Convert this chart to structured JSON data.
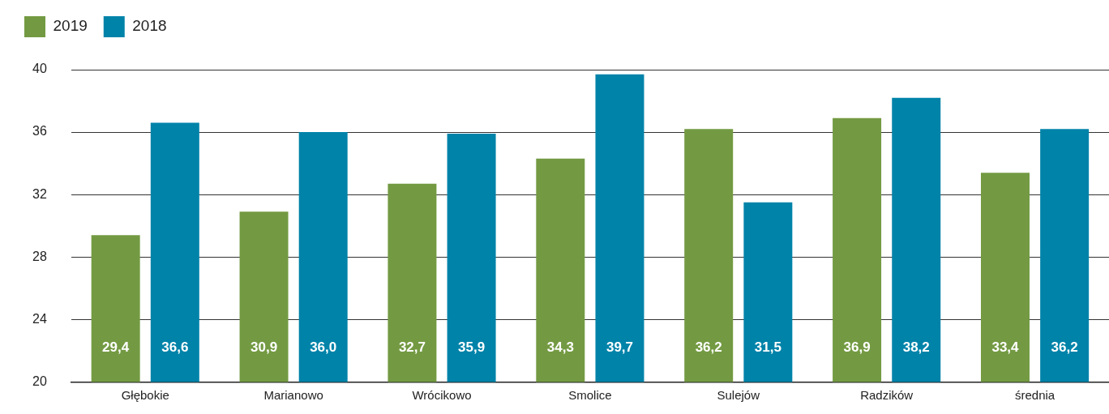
{
  "chart_data": {
    "type": "bar",
    "categories": [
      "Głębokie",
      "Marianowo",
      "Wrócikowo",
      "Smolice",
      "Sulejów",
      "Radzików",
      "średnia"
    ],
    "series": [
      {
        "name": "2019",
        "color": "#739a42",
        "values": [
          29.4,
          30.9,
          32.7,
          34.3,
          36.2,
          36.9,
          33.4
        ],
        "value_labels": [
          "29,4",
          "30,9",
          "32,7",
          "34,3",
          "36,2",
          "36,9",
          "33,4"
        ]
      },
      {
        "name": "2018",
        "color": "#0083a9",
        "values": [
          36.6,
          36.0,
          35.9,
          39.7,
          31.5,
          38.2,
          36.2
        ],
        "value_labels": [
          "36,6",
          "36,0",
          "35,9",
          "39,7",
          "31,5",
          "38,2",
          "36,2"
        ]
      }
    ],
    "ylim": [
      20,
      40
    ],
    "yticks": [
      20,
      24,
      28,
      32,
      36,
      40
    ],
    "grid": "y",
    "legend": "top left"
  }
}
